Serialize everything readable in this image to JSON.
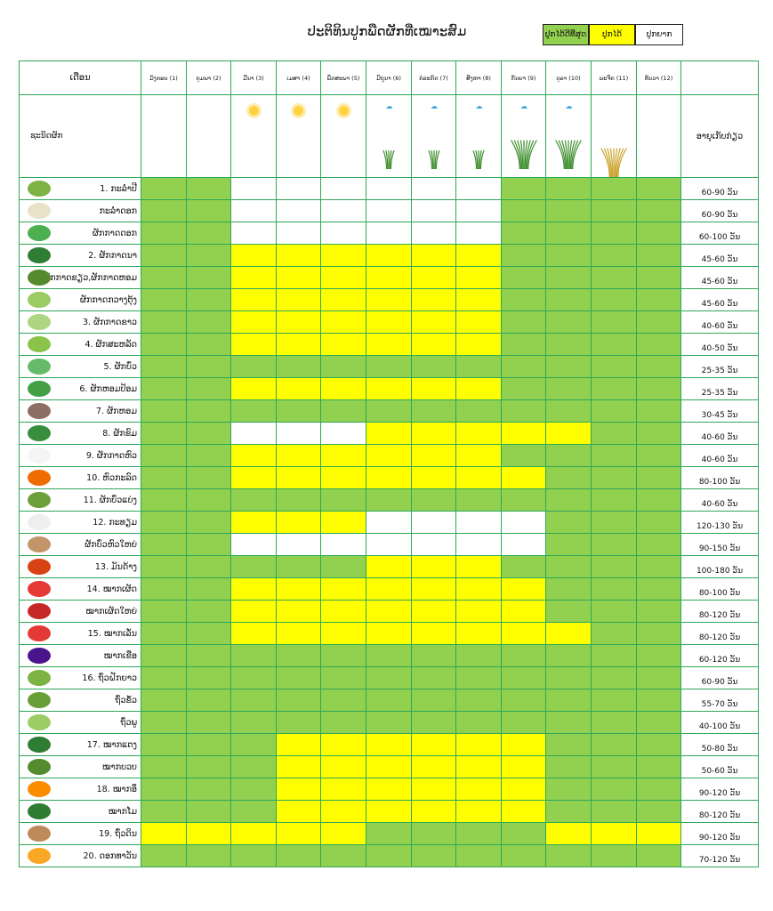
{
  "title": "ປະຕິທິນປູກພືດຜັກທີ່ເໝາະສົມ",
  "legend": {
    "best": "ປູກໄດ້ດີທີ່ສຸດ",
    "ok": "ປູກໄດ້",
    "hard": "ປູກຍາກ",
    "colors": {
      "best": "#92d050",
      "ok": "#ffff00",
      "hard": "#ffffff"
    }
  },
  "header": {
    "month_label": "ເດືອນ",
    "veg_label": "ຊະນິດຜັກ",
    "age_label": "ອາຍຸເກັບກ່ຽວ"
  },
  "months": [
    "ມັງກອນ (1)",
    "ກຸມພາ (2)",
    "ມີນາ (3)",
    "ເມສາ (4)",
    "ພຶດສະພາ (5)",
    "ມິຖຸນາ (6)",
    "ກໍລະກົດ (7)",
    "ສິງຫາ (8)",
    "ກັນຍາ (9)",
    "ຕຸລາ (10)",
    "ພະຈິກ (11)",
    "ທັນວາ (12)"
  ],
  "season_icons": [
    "",
    "",
    "sun-icon",
    "sun-icon",
    "sun-icon",
    "rain-seedling-icon",
    "rain-seedling-icon",
    "rain-rice-icon",
    "rain-rice-icon",
    "rain-rice-icon",
    "harvest-icon",
    ""
  ],
  "rows": [
    {
      "name": "1. ກະລໍ່າປີ",
      "age": "60-90 ວັນ",
      "icon": "cabbage-icon",
      "cells": "GGWWWWWWGGGG"
    },
    {
      "name": "ກະລໍ່າດອກ",
      "age": "60-90 ວັນ",
      "icon": "cauliflower-icon",
      "cells": "GGWWWWWWGGGG"
    },
    {
      "name": "ຜັກກາດດອກ",
      "age": "60-100 ວັນ",
      "icon": "broccoli-icon",
      "cells": "GGWWWWWWGGGG"
    },
    {
      "name": "2. ຜັກກາດນາ",
      "age": "45-60 ວັນ",
      "icon": "leafy-green-icon",
      "cells": "GGYYYYYYGGGG"
    },
    {
      "name": "ຜັກກາດຂຽວ,ຜັກກາດຫອມ",
      "age": "45-60 ວັນ",
      "icon": "mustard-green-icon",
      "cells": "GGYYYYYYGGGG"
    },
    {
      "name": "ຜັກກາດກວາງຕຸ້ງ",
      "age": "45-60 ວັນ",
      "icon": "bok-choy-icon",
      "cells": "GGYYYYYYGGGG"
    },
    {
      "name": "3. ຜັກກາດຂາວ",
      "age": "40-60 ວັນ",
      "icon": "napa-cabbage-icon",
      "cells": "GGYYYYYYGGGG"
    },
    {
      "name": "4. ຜັກສະຫລັດ",
      "age": "40-50 ວັນ",
      "icon": "lettuce-icon",
      "cells": "GGYYYYYYGGGG"
    },
    {
      "name": "5. ຜັກບົ່ວ",
      "age": "25-35 ວັນ",
      "icon": "spring-onion-icon",
      "cells": "GGGGGGGGGGGG"
    },
    {
      "name": "6. ຜັກຫອມປ້ອມ",
      "age": "25-35 ວັນ",
      "icon": "coriander-icon",
      "cells": "GGYYYYYYGGGG"
    },
    {
      "name": "7. ຜັກຫອມ",
      "age": "30-45 ວັນ",
      "icon": "herb-icon",
      "cells": "GGGGGGGGGGGG"
    },
    {
      "name": "8. ຜັກຂົມ",
      "age": "40-60 ວັນ",
      "icon": "amaranth-icon",
      "cells": "GGWWWYYYYYGG"
    },
    {
      "name": "9. ຜັກກາດຫົວ",
      "age": "40-60 ວັນ",
      "icon": "radish-icon",
      "cells": "GGYYYYYYGGGG"
    },
    {
      "name": "10. ຫົວກະລົດ",
      "age": "80-100 ວັນ",
      "icon": "carrot-icon",
      "cells": "GGYYYYYYYGGG"
    },
    {
      "name": "11. ຜັກບົ່ວແບ່ງ",
      "age": "40-60 ວັນ",
      "icon": "leek-icon",
      "cells": "GGGGGGGGGGGG"
    },
    {
      "name": "12. ກະທຽມ",
      "age": "120-130 ວັນ",
      "icon": "garlic-icon",
      "cells": "GGYYYWWWWGGG"
    },
    {
      "name": "ຜັກບົ່ວຫົວໃຫຍ່",
      "age": "90-150 ວັນ",
      "icon": "onion-icon",
      "cells": "GGWWWWWWWGGG"
    },
    {
      "name": "13. ມັນດ້າງ",
      "age": "100-180 ວັນ",
      "icon": "sweet-potato-icon",
      "cells": "GGGGGYYYGGGG"
    },
    {
      "name": "14. ໝາກເຜັດ",
      "age": "80-100 ວັນ",
      "icon": "chili-icon",
      "cells": "GGYYYYYYYGGG"
    },
    {
      "name": "ໝາກເຜັດໃຫຍ່",
      "age": "80-120 ວັນ",
      "icon": "bell-pepper-icon",
      "cells": "GGYYYYYYYGGG"
    },
    {
      "name": "15. ໝາກເລັ່ນ",
      "age": "80-120 ວັນ",
      "icon": "tomato-icon",
      "cells": "GGYYYYYYYYGG"
    },
    {
      "name": "ໝາກເຂືອ",
      "age": "60-120 ວັນ",
      "icon": "eggplant-icon",
      "cells": "GGGGGGGGGGGG"
    },
    {
      "name": "16. ຖົ່ວຝັກຍາວ",
      "age": "60-90 ວັນ",
      "icon": "long-bean-icon",
      "cells": "GGGGGGGGGGGG"
    },
    {
      "name": "ຖົ່ວຂໍ້ວ",
      "age": "55-70 ວັນ",
      "icon": "green-bean-icon",
      "cells": "GGGGGGGGGGGG"
    },
    {
      "name": "ຖົ່ວພູ",
      "age": "40-100 ວັນ",
      "icon": "winged-bean-icon",
      "cells": "GGGGGGGGGGGG"
    },
    {
      "name": "17. ໝາກແຕງ",
      "age": "50-80 ວັນ",
      "icon": "cucumber-icon",
      "cells": "GGGYYYYYYGGG"
    },
    {
      "name": "ໝາກບວບ",
      "age": "50-60 ວັນ",
      "icon": "loofah-icon",
      "cells": "GGGYYYYYYGGG"
    },
    {
      "name": "18. ໝາກອຶ",
      "age": "90-120 ວັນ",
      "icon": "pumpkin-icon",
      "cells": "GGGYYYYYYGGG"
    },
    {
      "name": "ໝາກໂມ",
      "age": "80-120 ວັນ",
      "icon": "watermelon-icon",
      "cells": "GGGYYYYYYGGG"
    },
    {
      "name": "19. ຖົ່ວດິນ",
      "age": "90-120 ວັນ",
      "icon": "peanut-icon",
      "cells": "YYYYYGGGGYYY"
    },
    {
      "name": "20. ດອກທາວັນ",
      "age": "70-120 ວັນ",
      "icon": "sunflower-icon",
      "cells": "GGGGGGGGGGGG"
    }
  ]
}
